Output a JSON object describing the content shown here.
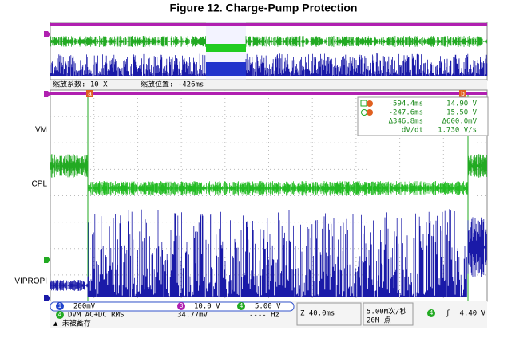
{
  "title": "Figure 12. Charge-Pump Protection",
  "zoom": {
    "factor": "缩放系数: 10 X",
    "position": "缩放位置: -426ms"
  },
  "channels": [
    "VM",
    "CPL",
    "VIPROPI"
  ],
  "cursors": {
    "a": "a",
    "b": "b",
    "readout": [
      [
        "-594.4ms",
        "14.90 V"
      ],
      [
        "-247.6ms",
        "15.50 V"
      ],
      [
        "Δ346.8ms",
        "Δ600.0mV"
      ],
      [
        "dV/dt",
        "1.730 V/s"
      ]
    ]
  },
  "status": {
    "ch1": {
      "number": "1",
      "scale": "200mV"
    },
    "ch3": {
      "number": "3",
      "scale": "10.0 V"
    },
    "ch4": {
      "number": "4",
      "scale": "5.00 V"
    },
    "dvm": {
      "number": "4",
      "mode": "DVM AC+DC RMS",
      "value": "34.77mV",
      "freq": "---- Hz"
    },
    "timebase": "Z 40.0ms",
    "rate": "5.00M次/秒",
    "points": "20M 点",
    "trigger": {
      "number": "4",
      "symbol": "ʃ",
      "level": "4.40 V"
    },
    "note": "▲ 未被蓄存"
  }
}
